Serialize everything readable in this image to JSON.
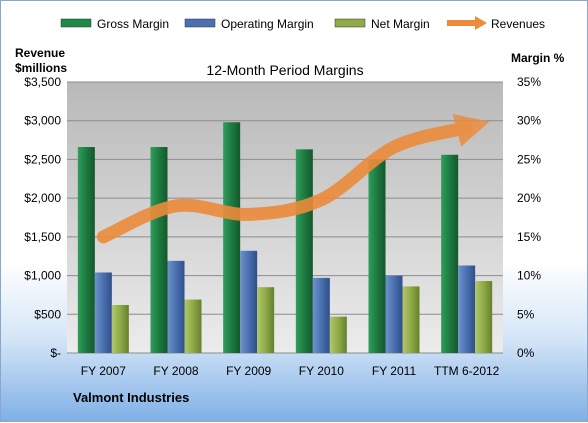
{
  "company": "Valmont Industries",
  "chart_data": {
    "type": "bar",
    "title": "12-Month Period Margins",
    "ylabel_left": "Revenue\n$millions",
    "ylabel_right": "Margin %",
    "categories": [
      "FY 2007",
      "FY 2008",
      "FY 2009",
      "FY 2010",
      "FY 2011",
      "TTM 6-2012"
    ],
    "ylim_left": [
      0,
      3500
    ],
    "ylim_right": [
      0,
      35
    ],
    "left_ticks": [
      "$-",
      "$500",
      "$1,000",
      "$1,500",
      "$2,000",
      "$2,500",
      "$3,000",
      "$3,500"
    ],
    "right_ticks": [
      "0%",
      "5%",
      "10%",
      "15%",
      "20%",
      "25%",
      "30%",
      "35%"
    ],
    "grid": true,
    "legend_position": "top",
    "series": [
      {
        "name": "Gross Margin",
        "kind": "bar",
        "axis": "right",
        "color": "#1e8a4a",
        "values": [
          26.6,
          26.6,
          29.8,
          26.3,
          25.0,
          25.6
        ]
      },
      {
        "name": "Operating Margin",
        "kind": "bar",
        "axis": "right",
        "color": "#4a70b0",
        "values": [
          10.4,
          11.9,
          13.2,
          9.7,
          10.0,
          11.3
        ]
      },
      {
        "name": "Net Margin",
        "kind": "bar",
        "axis": "right",
        "color": "#8faa48",
        "values": [
          6.2,
          6.9,
          8.5,
          4.7,
          8.6,
          9.3
        ]
      },
      {
        "name": "Revenues",
        "kind": "line",
        "axis": "left",
        "color": "#ec8b3a",
        "values": [
          1500,
          1900,
          1790,
          1980,
          2660,
          2910
        ]
      }
    ]
  }
}
